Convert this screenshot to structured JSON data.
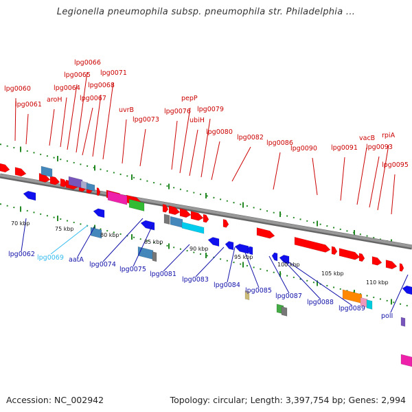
{
  "title": "Legionella pneumophila subsp. pneumophila str. Philadelphia ...",
  "footer": {
    "accession": "Accession: NC_002942",
    "summary": "Topology: circular; Length: 3,397,754 bp; Genes: 2,994"
  },
  "colors": {
    "forward_gene": "#ff0000",
    "reverse_gene": "#1010ee",
    "backbone": "#999999",
    "tick": "#228822",
    "label_top": "#cc0000",
    "label_bottom": "#1111aa",
    "label_highlight": "#33bbee"
  },
  "ruler_ticks": [
    "70 kbp",
    "75 kbp",
    "80 kbp",
    "85 kbp",
    "90 kbp",
    "95 kbp",
    "100 kbp",
    "105 kbp",
    "110 kbp"
  ],
  "top_labels": [
    "lpg0060",
    "lpg0061",
    "aroH",
    "lpg0064",
    "lpg0065",
    "lpg0066",
    "lpg0067",
    "lpg0068",
    "lpg0071",
    "uvrB",
    "lpg0073",
    "lpg0076",
    "pepP",
    "ubiH",
    "lpg0079",
    "lpg0080",
    "lpg0082",
    "lpg0086",
    "lpg0090",
    "lpg0091",
    "vacB",
    "lpg0093",
    "rpiA",
    "lpg0095"
  ],
  "bottom_labels": [
    "lpg0062",
    "lpg0069",
    "aatA",
    "lpg0074",
    "lpg0075",
    "lpg0081",
    "lpg0083",
    "lpg0084",
    "lpg0085",
    "lpg0087",
    "lpg0088",
    "lpg0089",
    "polI"
  ]
}
